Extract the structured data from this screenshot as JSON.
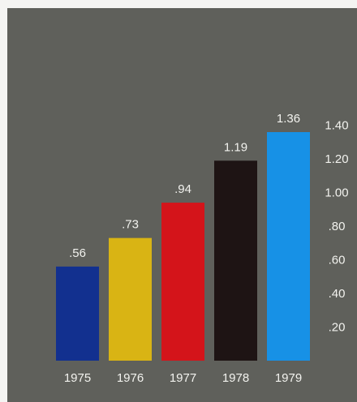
{
  "chart_data": {
    "type": "bar",
    "title": "",
    "xlabel": "",
    "ylabel": "",
    "categories": [
      "1975",
      "1976",
      "1977",
      "1978",
      "1979"
    ],
    "values": [
      0.56,
      0.73,
      0.94,
      1.19,
      1.36
    ],
    "data_labels": [
      ".56",
      ".73",
      ".94",
      "1.19",
      "1.36"
    ],
    "bar_colors": [
      "#12308f",
      "#d9b414",
      "#d4141a",
      "#1e1414",
      "#1791e6"
    ],
    "ylim": [
      0,
      1.4
    ],
    "y_axis_position": "right",
    "y_ticks": [
      {
        "value": 0.2,
        "label": ".20"
      },
      {
        "value": 0.4,
        "label": ".40"
      },
      {
        "value": 0.6,
        "label": ".60"
      },
      {
        "value": 0.8,
        "label": ".80"
      },
      {
        "value": 1.0,
        "label": "1.00"
      },
      {
        "value": 1.2,
        "label": "1.20"
      },
      {
        "value": 1.4,
        "label": "1.40"
      }
    ],
    "grid": false,
    "legend": "none",
    "background_color": "#5f605b"
  }
}
